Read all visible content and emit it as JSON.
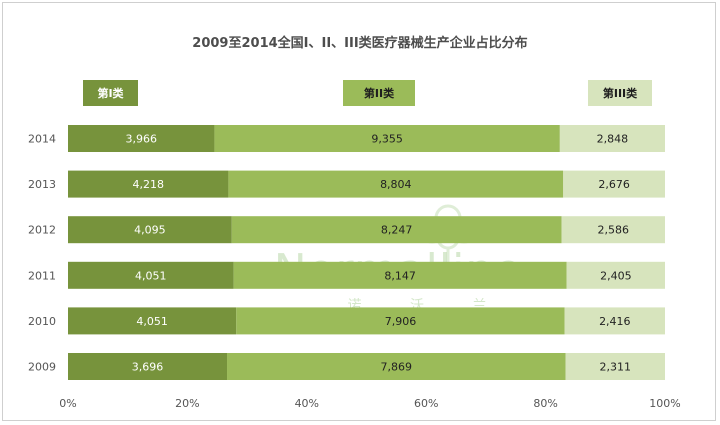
{
  "chart_data": {
    "type": "bar",
    "orientation": "horizontal",
    "stacked": "percent",
    "title": "2009至2014全国I、II、III类医疗器械生产企业占比分布",
    "categories": [
      "2014",
      "2013",
      "2012",
      "2011",
      "2010",
      "2009"
    ],
    "series": [
      {
        "name": "第I类",
        "color": "#77933c",
        "values": [
          3966,
          4218,
          4095,
          4051,
          4051,
          3696
        ]
      },
      {
        "name": "第II类",
        "color": "#9bbb59",
        "values": [
          9355,
          8804,
          8247,
          8147,
          7906,
          7869
        ]
      },
      {
        "name": "第III类",
        "color": "#d7e4bd",
        "values": [
          2848,
          2676,
          2586,
          2405,
          2416,
          2311
        ]
      }
    ],
    "xaxis_ticks": [
      "0%",
      "20%",
      "40%",
      "60%",
      "80%",
      "100%"
    ],
    "xlim": [
      0,
      100
    ],
    "grid": false,
    "legend_position": "top"
  },
  "watermark": {
    "text": "Normalline",
    "subtext": "诺 沃 兰",
    "icon": "cotton-flower-icon"
  }
}
